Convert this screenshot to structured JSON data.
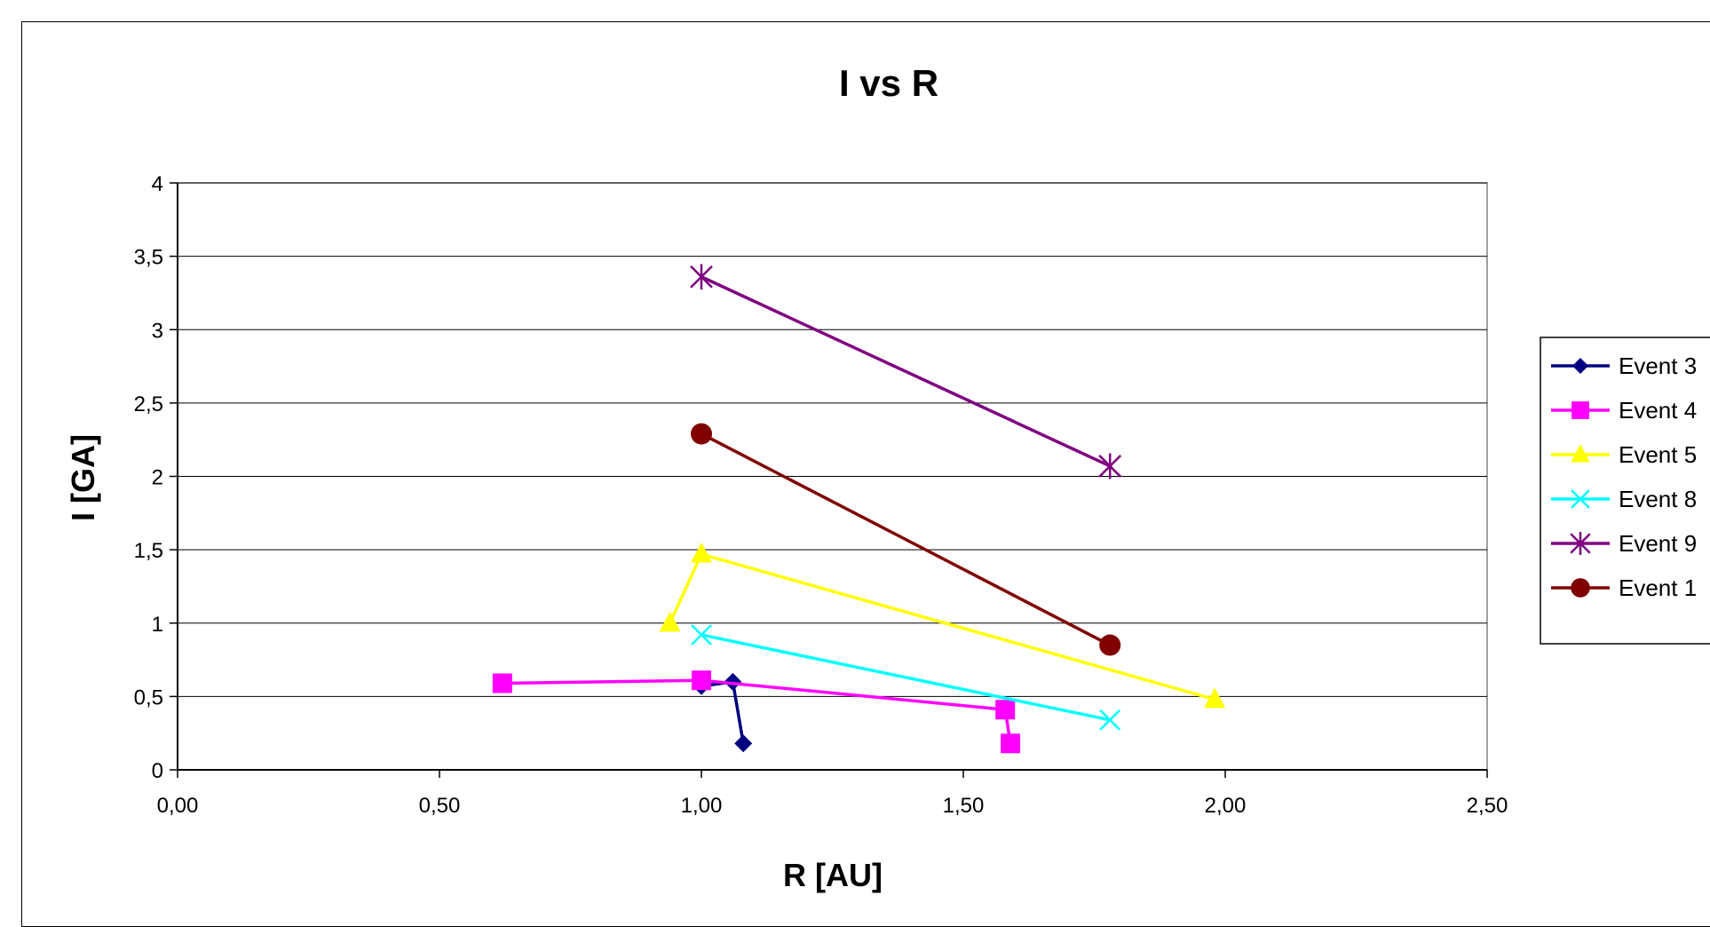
{
  "chart_data": {
    "type": "scatter",
    "title": "I vs R",
    "xlabel": "R [AU]",
    "ylabel": "I [GA]",
    "xlim": [
      0,
      2.5
    ],
    "ylim": [
      0,
      4
    ],
    "x_ticks": [
      "0,00",
      "0,50",
      "1,00",
      "1,50",
      "2,00",
      "2,50"
    ],
    "x_tick_values": [
      0,
      0.5,
      1.0,
      1.5,
      2.0,
      2.5
    ],
    "y_ticks": [
      "0",
      "0,5",
      "1",
      "1,5",
      "2",
      "2,5",
      "3",
      "3,5",
      "4"
    ],
    "y_tick_values": [
      0,
      0.5,
      1,
      1.5,
      2,
      2.5,
      3,
      3.5,
      4
    ],
    "grid": "horizontal",
    "legend_position": "right",
    "series": [
      {
        "name": "Event 3",
        "color": "#000080",
        "marker": "diamond",
        "points": [
          [
            1.0,
            0.57
          ],
          [
            1.06,
            0.6
          ],
          [
            1.08,
            0.18
          ]
        ]
      },
      {
        "name": "Event 4",
        "color": "#ff00ff",
        "marker": "square",
        "points": [
          [
            0.62,
            0.59
          ],
          [
            1.0,
            0.61
          ],
          [
            1.58,
            0.41
          ],
          [
            1.59,
            0.18
          ]
        ]
      },
      {
        "name": "Event 5",
        "color": "#ffff00",
        "marker": "triangle",
        "points": [
          [
            0.94,
            1.0
          ],
          [
            1.0,
            1.47
          ],
          [
            1.98,
            0.48
          ]
        ]
      },
      {
        "name": "Event 8",
        "color": "#00ffff",
        "marker": "x",
        "points": [
          [
            1.0,
            0.92
          ],
          [
            1.78,
            0.34
          ]
        ]
      },
      {
        "name": "Event 9",
        "color": "#800080",
        "marker": "asterisk",
        "points": [
          [
            1.0,
            3.36
          ],
          [
            1.78,
            2.07
          ]
        ]
      },
      {
        "name": "Event 1",
        "color": "#800000",
        "marker": "circle",
        "points": [
          [
            1.0,
            2.29
          ],
          [
            1.78,
            0.85
          ]
        ]
      }
    ]
  }
}
